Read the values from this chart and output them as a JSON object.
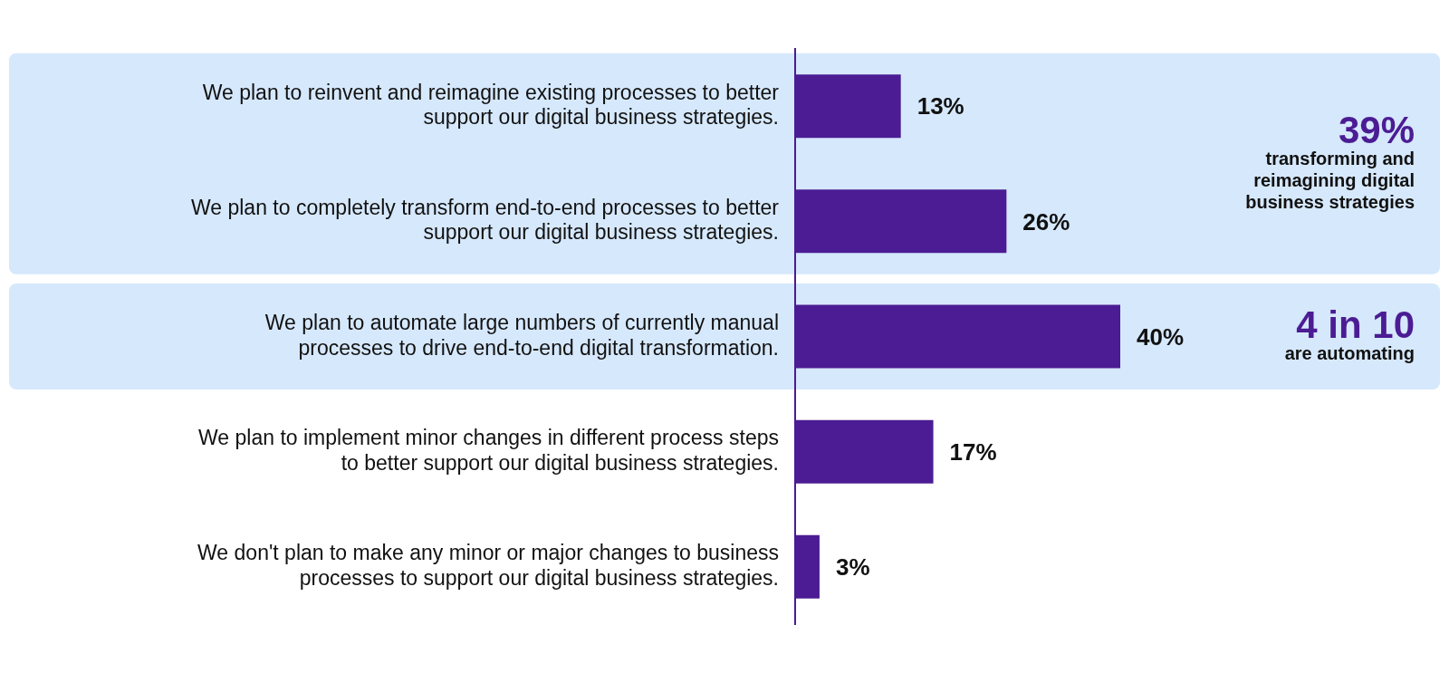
{
  "chart_data": {
    "type": "bar",
    "orientation": "horizontal",
    "categories": [
      "We plan to reinvent and reimagine existing processes to better\nsupport our digital business strategies.",
      "We plan to completely transform end-to-end processes to better\nsupport our digital business strategies.",
      "We plan to automate large numbers of currently manual\nprocesses to drive end-to-end digital transformation.",
      "We plan to implement minor changes in different process steps\nto better support our digital business strategies.",
      "We don't plan to make any minor or major changes to business\nprocesses to support our digital business strategies."
    ],
    "values": [
      13,
      26,
      40,
      17,
      3
    ],
    "value_labels": [
      "13%",
      "26%",
      "40%",
      "17%",
      "3%"
    ],
    "color": "#4b1c93",
    "tick_labels": "y",
    "grid": false,
    "legend": false,
    "bands": [
      {
        "axis": "y",
        "from": "We plan to reinvent and reimagine existing processes to better\nsupport our digital business strategies.",
        "to": "We plan to completely transform end-to-end processes to better\nsupport our digital business strategies.",
        "label": "39%",
        "color": "#d6e8fc"
      },
      {
        "axis": "y",
        "from": "We plan to automate large numbers of currently manual\nprocesses to drive end-to-end digital transformation.",
        "to": "We plan to automate large numbers of currently manual\nprocesses to drive end-to-end digital transformation.",
        "label": "4 in 10",
        "color": "#d6e8fc"
      }
    ],
    "annotations": [
      "transforming and\nreimagining digital\nbusiness strategies",
      "are automating"
    ]
  }
}
